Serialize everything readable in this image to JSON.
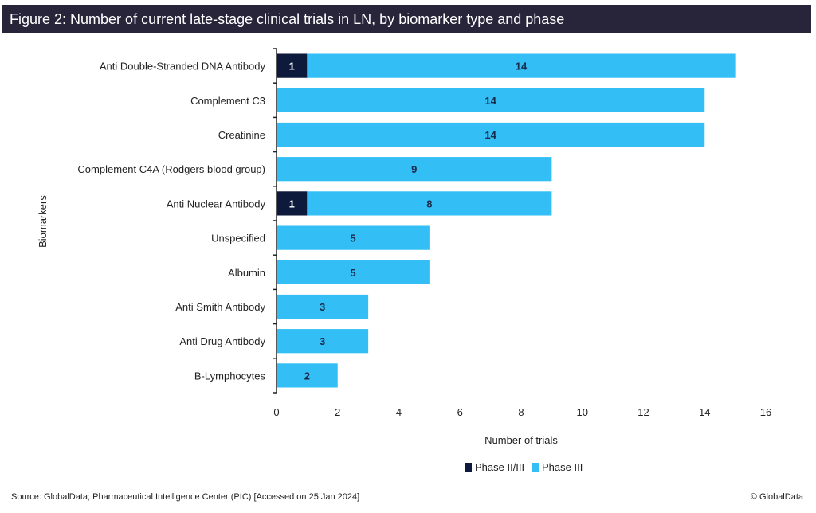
{
  "header": {
    "title": "Figure 2: Number of current late-stage clinical trials in LN, by biomarker type and phase"
  },
  "footer": {
    "source": "Source: GlobalData; Pharmaceutical Intelligence Center (PIC) [Accessed on 25 Jan 2024]",
    "copyright": "© GlobalData"
  },
  "colors": {
    "title_bg": "#28243a",
    "phase_ii_iii": "#0e1a3c",
    "phase_iii": "#33bff5",
    "axis": "#222222"
  },
  "chart_data": {
    "type": "bar",
    "orientation": "horizontal",
    "stacked": true,
    "title": "Figure 2: Number of current late-stage clinical trials in LN, by biomarker type and phase",
    "xlabel": "Number of trials",
    "ylabel": "Biomarkers",
    "xlim": [
      0,
      16
    ],
    "xticks": [
      0,
      2,
      4,
      6,
      8,
      10,
      12,
      14,
      16
    ],
    "grid": false,
    "legend_position": "bottom-center",
    "categories": [
      "Anti Double-Stranded DNA Antibody",
      "Complement C3",
      "Creatinine",
      "Complement C4A (Rodgers blood group)",
      "Anti Nuclear Antibody",
      "Unspecified",
      "Albumin",
      "Anti Smith Antibody",
      "Anti Drug Antibody",
      "B-Lymphocytes"
    ],
    "series": [
      {
        "name": "Phase II/III",
        "color": "#0e1a3c",
        "label_color": "#ffffff",
        "values": [
          1,
          0,
          0,
          0,
          1,
          0,
          0,
          0,
          0,
          0
        ]
      },
      {
        "name": "Phase III",
        "color": "#33bff5",
        "label_color": "#1a2a4a",
        "values": [
          14,
          14,
          14,
          9,
          8,
          5,
          5,
          3,
          3,
          2
        ]
      }
    ]
  }
}
